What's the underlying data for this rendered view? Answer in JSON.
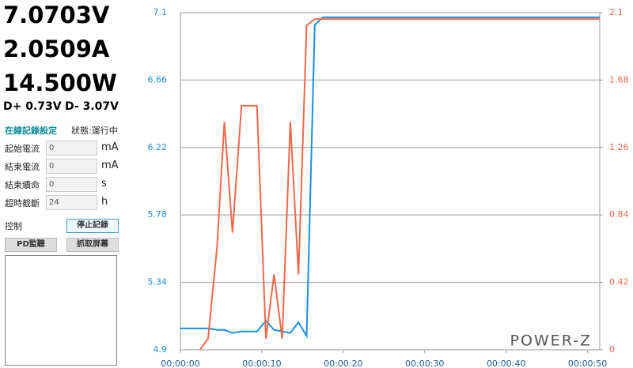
{
  "readout": {
    "voltage": "7.0703V",
    "current": "2.0509A",
    "power": "14.500W",
    "d_plus": "D+ 0.73V",
    "d_minus": "D- 3.07V"
  },
  "settings": {
    "title": "在線記錄設定",
    "status": "狀態:運行中",
    "fields": [
      {
        "label": "起始電流",
        "value": "0",
        "unit": "mA"
      },
      {
        "label": "結束電流",
        "value": "0",
        "unit": "mA"
      },
      {
        "label": "結束續命",
        "value": "0",
        "unit": "s"
      },
      {
        "label": "超時截斷",
        "value": "24",
        "unit": "h"
      }
    ]
  },
  "controls": {
    "label": "控制",
    "stop_button": "停止記錄",
    "pd_button": "PD監聽",
    "capture_button": "抓取屏幕"
  },
  "chart_data": {
    "type": "line",
    "logo": "POWER-Z",
    "x": [
      0,
      2.4,
      3.4,
      4.5,
      5.4,
      6.4,
      7.5,
      9.4,
      10.5,
      11.5,
      12.5,
      13.5,
      14.5,
      15.5,
      16.5,
      17.5,
      51.5
    ],
    "xlim": [
      0,
      51.5
    ],
    "xticks": [
      {
        "value": 0,
        "label": "00:00:00"
      },
      {
        "value": 10,
        "label": "00:00:10"
      },
      {
        "value": 20,
        "label": "00:00:20"
      },
      {
        "value": 30,
        "label": "00:00:30"
      },
      {
        "value": 40,
        "label": "00:00:40"
      },
      {
        "value": 50,
        "label": "00:00:50"
      }
    ],
    "ylim": [
      4.9,
      7.1
    ],
    "yticks": [
      4.9,
      5.34,
      5.78,
      6.22,
      6.66,
      7.1
    ],
    "y2lim": [
      0,
      2.1
    ],
    "y2ticks": [
      0,
      0.42,
      0.84,
      1.26,
      1.68,
      2.1
    ],
    "grid": true,
    "series": [
      {
        "color": "#1a8fe0",
        "values": [
          5.04,
          5.04,
          5.04,
          5.03,
          5.03,
          5.01,
          5.02,
          5.02,
          5.09,
          5.03,
          5.02,
          5.01,
          5.08,
          4.99,
          7.02,
          7.07,
          7.07
        ]
      },
      {
        "color": "#f0684a",
        "axis": "y2",
        "values": [
          null,
          0,
          0.07,
          0.64,
          1.42,
          0.73,
          1.52,
          1.52,
          0.07,
          0.47,
          0.07,
          1.42,
          0.47,
          2.02,
          2.06,
          2.06,
          2.06
        ]
      }
    ]
  }
}
